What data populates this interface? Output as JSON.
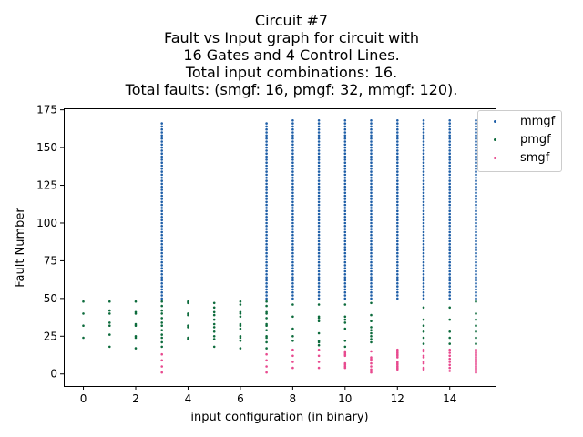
{
  "chart_data": {
    "type": "scatter",
    "title_lines": [
      "Circuit #7",
      "Fault vs Input graph for circuit with",
      "16 Gates and 4 Control Lines.",
      "Total input combinations: 16.",
      "Total faults: (smgf: 16, pmgf: 32, mmgf: 120)."
    ],
    "xlabel": "input configuration (in binary)",
    "ylabel": "Fault Number",
    "xlim": [
      -0.75,
      15.75
    ],
    "ylim": [
      -8,
      176
    ],
    "xticks": [
      0,
      2,
      4,
      6,
      8,
      10,
      12,
      14
    ],
    "yticks": [
      0,
      25,
      50,
      75,
      100,
      125,
      150,
      175
    ],
    "grid": false,
    "legend_position": "top-right outside",
    "series": [
      {
        "name": "mmgf",
        "color": "#1f5fa8",
        "points": [
          {
            "x": 3,
            "y": [
              50,
              52,
              54,
              56,
              58,
              60,
              62,
              64,
              66,
              68,
              70,
              72,
              74,
              76,
              78,
              80,
              82,
              84,
              86,
              88,
              90,
              92,
              94,
              96,
              98,
              100,
              102,
              104,
              106,
              108,
              110,
              112,
              114,
              116,
              118,
              120,
              122,
              124,
              126,
              128,
              130,
              132,
              134,
              136,
              138,
              140,
              142,
              144,
              146,
              148,
              150,
              152,
              154,
              156,
              158,
              160,
              162,
              164,
              166
            ]
          },
          {
            "x": 7,
            "y": [
              50,
              52,
              54,
              56,
              58,
              60,
              62,
              64,
              66,
              68,
              70,
              72,
              74,
              76,
              78,
              80,
              82,
              84,
              86,
              88,
              90,
              92,
              94,
              96,
              98,
              100,
              102,
              104,
              106,
              108,
              110,
              112,
              114,
              116,
              118,
              120,
              122,
              124,
              126,
              128,
              130,
              132,
              134,
              136,
              138,
              140,
              142,
              144,
              146,
              148,
              150,
              152,
              154,
              156,
              158,
              160,
              162,
              164,
              166
            ]
          },
          {
            "x": 8,
            "y": [
              50,
              52,
              54,
              56,
              58,
              60,
              62,
              64,
              66,
              68,
              70,
              72,
              74,
              76,
              78,
              80,
              82,
              84,
              86,
              88,
              90,
              92,
              94,
              96,
              98,
              100,
              102,
              104,
              106,
              108,
              110,
              112,
              114,
              116,
              118,
              120,
              122,
              124,
              126,
              128,
              130,
              132,
              134,
              136,
              138,
              140,
              142,
              144,
              146,
              148,
              150,
              152,
              154,
              156,
              158,
              160,
              162,
              164,
              166,
              168
            ]
          },
          {
            "x": 9,
            "y": [
              50,
              52,
              54,
              56,
              58,
              60,
              62,
              64,
              66,
              68,
              70,
              72,
              74,
              76,
              78,
              80,
              82,
              84,
              86,
              88,
              90,
              92,
              94,
              96,
              98,
              100,
              102,
              104,
              106,
              108,
              110,
              112,
              114,
              116,
              118,
              120,
              122,
              124,
              126,
              128,
              130,
              132,
              134,
              136,
              138,
              140,
              142,
              144,
              146,
              148,
              150,
              152,
              154,
              156,
              158,
              160,
              162,
              164,
              166,
              168
            ]
          },
          {
            "x": 10,
            "y": [
              50,
              52,
              54,
              56,
              58,
              60,
              62,
              64,
              66,
              68,
              70,
              72,
              74,
              76,
              78,
              80,
              82,
              84,
              86,
              88,
              90,
              92,
              94,
              96,
              98,
              100,
              102,
              104,
              106,
              108,
              110,
              112,
              114,
              116,
              118,
              120,
              122,
              124,
              126,
              128,
              130,
              132,
              134,
              136,
              138,
              140,
              142,
              144,
              146,
              148,
              150,
              152,
              154,
              156,
              158,
              160,
              162,
              164,
              166,
              168
            ]
          },
          {
            "x": 11,
            "y": [
              50,
              52,
              54,
              56,
              58,
              60,
              62,
              64,
              66,
              68,
              70,
              72,
              74,
              76,
              78,
              80,
              82,
              84,
              86,
              88,
              90,
              92,
              94,
              96,
              98,
              100,
              102,
              104,
              106,
              108,
              110,
              112,
              114,
              116,
              118,
              120,
              122,
              124,
              126,
              128,
              130,
              132,
              134,
              136,
              138,
              140,
              142,
              144,
              146,
              148,
              150,
              152,
              154,
              156,
              158,
              160,
              162,
              164,
              166,
              168
            ]
          },
          {
            "x": 12,
            "y": [
              50,
              52,
              54,
              56,
              58,
              60,
              62,
              64,
              66,
              68,
              70,
              72,
              74,
              76,
              78,
              80,
              82,
              84,
              86,
              88,
              90,
              92,
              94,
              96,
              98,
              100,
              102,
              104,
              106,
              108,
              110,
              112,
              114,
              116,
              118,
              120,
              122,
              124,
              126,
              128,
              130,
              132,
              134,
              136,
              138,
              140,
              142,
              144,
              146,
              148,
              150,
              152,
              154,
              156,
              158,
              160,
              162,
              164,
              166,
              168
            ]
          },
          {
            "x": 13,
            "y": [
              50,
              52,
              54,
              56,
              58,
              60,
              62,
              64,
              66,
              68,
              70,
              72,
              74,
              76,
              78,
              80,
              82,
              84,
              86,
              88,
              90,
              92,
              94,
              96,
              98,
              100,
              102,
              104,
              106,
              108,
              110,
              112,
              114,
              116,
              118,
              120,
              122,
              124,
              126,
              128,
              130,
              132,
              134,
              136,
              138,
              140,
              142,
              144,
              146,
              148,
              150,
              152,
              154,
              156,
              158,
              160,
              162,
              164,
              166,
              168
            ]
          },
          {
            "x": 14,
            "y": [
              50,
              52,
              54,
              56,
              58,
              60,
              62,
              64,
              66,
              68,
              70,
              72,
              74,
              76,
              78,
              80,
              82,
              84,
              86,
              88,
              90,
              92,
              94,
              96,
              98,
              100,
              102,
              104,
              106,
              108,
              110,
              112,
              114,
              116,
              118,
              120,
              122,
              124,
              126,
              128,
              130,
              132,
              134,
              136,
              138,
              140,
              142,
              144,
              146,
              148,
              150,
              152,
              154,
              156,
              158,
              160,
              162,
              164,
              166,
              168
            ]
          },
          {
            "x": 15,
            "y": [
              50,
              52,
              54,
              56,
              58,
              60,
              62,
              64,
              66,
              68,
              70,
              72,
              74,
              76,
              78,
              80,
              82,
              84,
              86,
              88,
              90,
              92,
              94,
              96,
              98,
              100,
              102,
              104,
              106,
              108,
              110,
              112,
              114,
              116,
              118,
              120,
              122,
              124,
              126,
              128,
              130,
              132,
              134,
              136,
              138,
              140,
              142,
              144,
              146,
              148,
              150,
              152,
              154,
              156,
              158,
              160,
              162,
              164,
              166,
              168
            ]
          }
        ]
      },
      {
        "name": "pmgf",
        "color": "#0d6b3c",
        "points": [
          {
            "x": 0,
            "y": [
              24,
              32,
              40,
              48
            ]
          },
          {
            "x": 1,
            "y": [
              18,
              26,
              32,
              34,
              40,
              42,
              48
            ]
          },
          {
            "x": 2,
            "y": [
              17,
              24,
              25,
              32,
              33,
              40,
              41,
              48
            ]
          },
          {
            "x": 3,
            "y": [
              18,
              21,
              24,
              26,
              29,
              32,
              34,
              37,
              40,
              42,
              45,
              48
            ]
          },
          {
            "x": 4,
            "y": [
              23,
              24,
              31,
              32,
              39,
              40,
              47,
              48
            ]
          },
          {
            "x": 5,
            "y": [
              18,
              23,
              25,
              28,
              31,
              33,
              36,
              39,
              41,
              44,
              47
            ]
          },
          {
            "x": 6,
            "y": [
              17,
              22,
              24,
              25,
              30,
              32,
              33,
              38,
              40,
              41,
              46,
              48
            ]
          },
          {
            "x": 7,
            "y": [
              17,
              21,
              24,
              25,
              29,
              32,
              33,
              37,
              40,
              41,
              45,
              48
            ]
          },
          {
            "x": 8,
            "y": [
              22,
              25,
              30,
              38,
              46
            ]
          },
          {
            "x": 9,
            "y": [
              19,
              21,
              22,
              27,
              35,
              37,
              38,
              46
            ]
          },
          {
            "x": 10,
            "y": [
              18,
              22,
              30,
              34,
              36,
              38,
              46
            ]
          },
          {
            "x": 11,
            "y": [
              21,
              23,
              25,
              27,
              29,
              31,
              35,
              39,
              47
            ]
          },
          {
            "x": 13,
            "y": [
              20,
              24,
              28,
              32,
              36,
              44
            ]
          },
          {
            "x": 14,
            "y": [
              20,
              24,
              28,
              36,
              44
            ]
          },
          {
            "x": 15,
            "y": [
              20,
              24,
              28,
              32,
              36,
              40,
              48
            ]
          }
        ]
      },
      {
        "name": "smgf",
        "color": "#e84a8f",
        "points": [
          {
            "x": 3,
            "y": [
              1,
              5,
              9,
              13
            ]
          },
          {
            "x": 7,
            "y": [
              1,
              5,
              9,
              13
            ]
          },
          {
            "x": 8,
            "y": [
              4,
              8,
              12,
              16
            ]
          },
          {
            "x": 9,
            "y": [
              4,
              8,
              12,
              16
            ]
          },
          {
            "x": 10,
            "y": [
              4,
              5,
              6,
              7,
              12,
              13,
              14,
              15
            ]
          },
          {
            "x": 11,
            "y": [
              1,
              2,
              3,
              5,
              7,
              9,
              10,
              11,
              15
            ]
          },
          {
            "x": 12,
            "y": [
              3,
              4,
              5,
              6,
              7,
              8,
              11,
              12,
              13,
              14,
              15,
              16
            ]
          },
          {
            "x": 13,
            "y": [
              3,
              4,
              7,
              8,
              11,
              12,
              15,
              16
            ]
          },
          {
            "x": 14,
            "y": [
              2,
              4,
              6,
              8,
              10,
              12,
              14,
              16
            ]
          },
          {
            "x": 15,
            "y": [
              1,
              2,
              3,
              4,
              5,
              6,
              7,
              8,
              9,
              10,
              11,
              12,
              13,
              14,
              15,
              16
            ]
          }
        ]
      }
    ]
  }
}
